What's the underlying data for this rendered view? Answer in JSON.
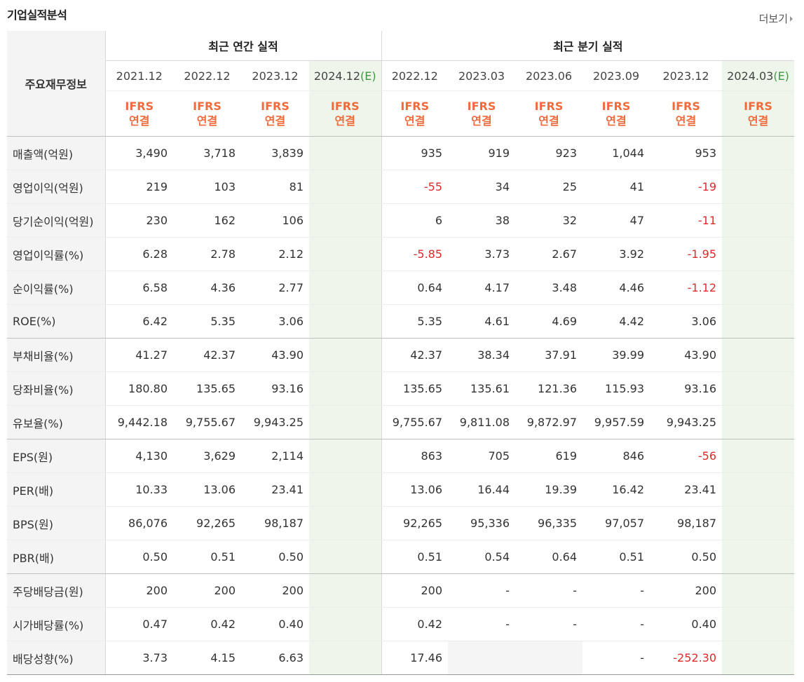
{
  "section_title": "기업실적분석",
  "more_label": "더보기",
  "header": {
    "row_label": "주요재무정보",
    "annual_group": "최근 연간 실적",
    "quarter_group": "최근 분기 실적",
    "annual_periods": [
      "2021.12",
      "2022.12",
      "2023.12",
      "2024.12"
    ],
    "quarter_periods": [
      "2022.12",
      "2023.03",
      "2023.06",
      "2023.09",
      "2023.12",
      "2024.03"
    ],
    "estimate_mark": "(E)",
    "accounting_line1": "IFRS",
    "accounting_line2": "연결"
  },
  "rows": [
    {
      "label": "매출액(억원)",
      "annual": [
        "3,490",
        "3,718",
        "3,839",
        ""
      ],
      "quarter": [
        "935",
        "919",
        "923",
        "1,044",
        "953",
        ""
      ]
    },
    {
      "label": "영업이익(억원)",
      "annual": [
        "219",
        "103",
        "81",
        ""
      ],
      "quarter": [
        "-55",
        "34",
        "25",
        "41",
        "-19",
        ""
      ]
    },
    {
      "label": "당기순이익(억원)",
      "annual": [
        "230",
        "162",
        "106",
        ""
      ],
      "quarter": [
        "6",
        "38",
        "32",
        "47",
        "-11",
        ""
      ]
    },
    {
      "label": "영업이익률(%)",
      "annual": [
        "6.28",
        "2.78",
        "2.12",
        ""
      ],
      "quarter": [
        "-5.85",
        "3.73",
        "2.67",
        "3.92",
        "-1.95",
        ""
      ]
    },
    {
      "label": "순이익률(%)",
      "annual": [
        "6.58",
        "4.36",
        "2.77",
        ""
      ],
      "quarter": [
        "0.64",
        "4.17",
        "3.48",
        "4.46",
        "-1.12",
        ""
      ]
    },
    {
      "label": "ROE(%)",
      "annual": [
        "6.42",
        "5.35",
        "3.06",
        ""
      ],
      "quarter": [
        "5.35",
        "4.61",
        "4.69",
        "4.42",
        "3.06",
        ""
      ]
    },
    {
      "label": "부채비율(%)",
      "annual": [
        "41.27",
        "42.37",
        "43.90",
        ""
      ],
      "quarter": [
        "42.37",
        "38.34",
        "37.91",
        "39.99",
        "43.90",
        ""
      ]
    },
    {
      "label": "당좌비율(%)",
      "annual": [
        "180.80",
        "135.65",
        "93.16",
        ""
      ],
      "quarter": [
        "135.65",
        "135.61",
        "121.36",
        "115.93",
        "93.16",
        ""
      ]
    },
    {
      "label": "유보율(%)",
      "annual": [
        "9,442.18",
        "9,755.67",
        "9,943.25",
        ""
      ],
      "quarter": [
        "9,755.67",
        "9,811.08",
        "9,872.97",
        "9,957.59",
        "9,943.25",
        ""
      ]
    },
    {
      "label": "EPS(원)",
      "annual": [
        "4,130",
        "3,629",
        "2,114",
        ""
      ],
      "quarter": [
        "863",
        "705",
        "619",
        "846",
        "-56",
        ""
      ]
    },
    {
      "label": "PER(배)",
      "annual": [
        "10.33",
        "13.06",
        "23.41",
        ""
      ],
      "quarter": [
        "13.06",
        "16.44",
        "19.39",
        "16.42",
        "23.41",
        ""
      ]
    },
    {
      "label": "BPS(원)",
      "annual": [
        "86,076",
        "92,265",
        "98,187",
        ""
      ],
      "quarter": [
        "92,265",
        "95,336",
        "96,335",
        "97,057",
        "98,187",
        ""
      ]
    },
    {
      "label": "PBR(배)",
      "annual": [
        "0.50",
        "0.51",
        "0.50",
        ""
      ],
      "quarter": [
        "0.51",
        "0.54",
        "0.64",
        "0.51",
        "0.50",
        ""
      ]
    },
    {
      "label": "주당배당금(원)",
      "annual": [
        "200",
        "200",
        "200",
        ""
      ],
      "quarter": [
        "200",
        "-",
        "-",
        "-",
        "200",
        ""
      ]
    },
    {
      "label": "시가배당률(%)",
      "annual": [
        "0.47",
        "0.42",
        "0.40",
        ""
      ],
      "quarter": [
        "0.42",
        "-",
        "-",
        "-",
        "0.40",
        ""
      ]
    },
    {
      "label": "배당성향(%)",
      "annual": [
        "3.73",
        "4.15",
        "6.63",
        ""
      ],
      "quarter": [
        "17.46",
        "",
        "",
        "-",
        "-252.30",
        ""
      ]
    }
  ],
  "colors": {
    "negative": "#e02a2a",
    "accounting": "#f06b3c",
    "estimate_bg": "#eef6ec",
    "estimate_mark": "#3c9a3c"
  }
}
